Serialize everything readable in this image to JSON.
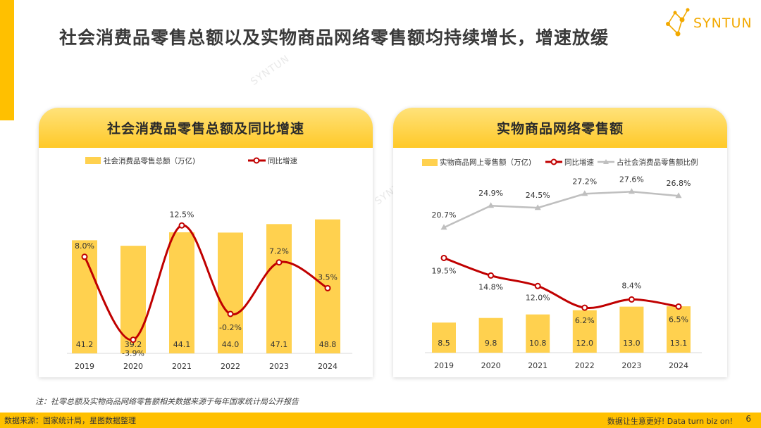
{
  "title": "社会消费品零售总额以及实物商品网络零售额均持续增长，增速放缓",
  "logo": {
    "text": "SYNTUN"
  },
  "watermark": "SYNTUN",
  "colors": {
    "accent": "#FFC000",
    "bar": "#FFD14F",
    "growth_line": "#C00000",
    "share_line": "#BFBFBF"
  },
  "left_chart": {
    "heading": "社会消费品零售总额及同比增速",
    "chart_data": {
      "type": "bar+line",
      "categories": [
        "2019",
        "2020",
        "2021",
        "2022",
        "2023",
        "2024"
      ],
      "series": [
        {
          "name": "社会消费品零售总额（万亿)",
          "type": "bar",
          "values": [
            41.2,
            39.2,
            44.1,
            44.0,
            47.1,
            48.8
          ],
          "labels": [
            "41.2",
            "39.2",
            "44.1",
            "44.0",
            "47.1",
            "48.8"
          ]
        },
        {
          "name": "同比增速",
          "type": "line",
          "values": [
            8.0,
            -3.9,
            12.5,
            -0.2,
            7.2,
            3.5
          ],
          "labels": [
            "8.0%",
            "-3.9%",
            "12.5%",
            "-0.2%",
            "7.2%",
            "3.5%"
          ]
        }
      ],
      "legend": "top"
    }
  },
  "right_chart": {
    "heading": "实物商品网络零售额",
    "chart_data": {
      "type": "bar+line",
      "categories": [
        "2019",
        "2020",
        "2021",
        "2022",
        "2023",
        "2024"
      ],
      "series": [
        {
          "name": "实物商品网上零售额（万亿)",
          "type": "bar",
          "values": [
            8.5,
            9.8,
            10.8,
            12.0,
            13.0,
            13.1
          ],
          "labels": [
            "8.5",
            "9.8",
            "10.8",
            "12.0",
            "13.0",
            "13.1"
          ]
        },
        {
          "name": "同比增速",
          "type": "line",
          "values": [
            19.5,
            14.8,
            12.0,
            6.2,
            8.4,
            6.5
          ],
          "labels": [
            "19.5%",
            "14.8%",
            "12.0%",
            "6.2%",
            "8.4%",
            "6.5%"
          ]
        },
        {
          "name": "占社会消费品零售额比例",
          "type": "line",
          "values": [
            20.7,
            24.9,
            24.5,
            27.2,
            27.6,
            26.8
          ],
          "labels": [
            "20.7%",
            "24.9%",
            "24.5%",
            "27.2%",
            "27.6%",
            "26.8%"
          ]
        }
      ],
      "legend": "top"
    }
  },
  "note": "注：社零总额及实物商品网络零售额相关数据来源于每年国家统计局公开报告",
  "footer": {
    "source": "数据来源：国家统计局，星图数据整理",
    "slogan": "数据让生意更好! Data turn biz on!",
    "page": "6"
  }
}
